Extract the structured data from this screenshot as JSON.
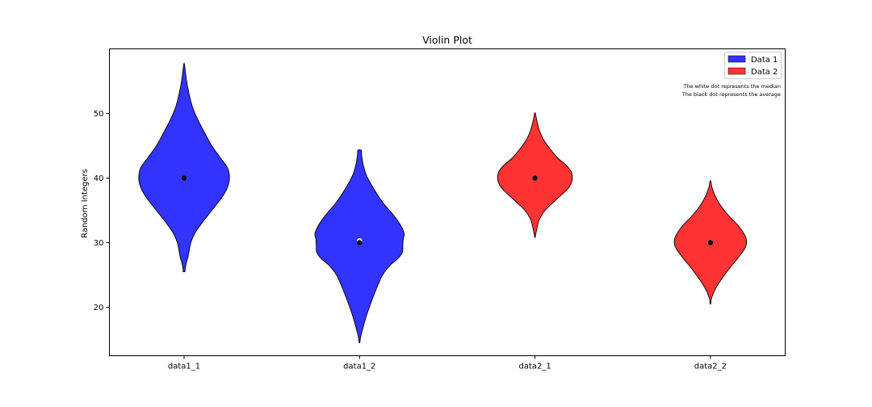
{
  "chart_data": {
    "type": "violin",
    "title": "Violin Plot",
    "xlabel": "",
    "ylabel": "Random Integers",
    "categories": [
      "data1_1",
      "data1_2",
      "data2_1",
      "data2_2"
    ],
    "ylim": [
      12.5,
      60
    ],
    "yticks": [
      20,
      30,
      40,
      50
    ],
    "grid": false,
    "legend_position": "top-right",
    "series": [
      {
        "name": "Data 1",
        "color": "#0000ff",
        "categories": [
          "data1_1",
          "data1_2"
        ]
      },
      {
        "name": "Data 2",
        "color": "#ff0000",
        "categories": [
          "data2_1",
          "data2_2"
        ]
      }
    ],
    "violins": [
      {
        "category": "data1_1",
        "series": "Data 1",
        "color": "#0000ff",
        "min": 25.5,
        "max": 57.5,
        "median": 40.0,
        "mean": 40.0,
        "profile": [
          [
            25.5,
            0.2
          ],
          [
            26.5,
            0.4
          ],
          [
            28,
            1.0
          ],
          [
            30,
            1.6
          ],
          [
            31.5,
            2.6
          ],
          [
            33,
            4.2
          ],
          [
            35,
            6.6
          ],
          [
            37,
            9.0
          ],
          [
            38.5,
            10.3
          ],
          [
            40,
            10.8
          ],
          [
            41.5,
            10.4
          ],
          [
            43,
            8.8
          ],
          [
            45,
            6.6
          ],
          [
            47,
            4.9
          ],
          [
            49,
            3.3
          ],
          [
            51,
            2.0
          ],
          [
            53,
            1.2
          ],
          [
            55,
            0.6
          ],
          [
            57.5,
            0.1
          ]
        ]
      },
      {
        "category": "data1_2",
        "series": "Data 1",
        "color": "#0000ff",
        "min": 14.5,
        "max": 44.3,
        "median": 30.3,
        "mean": 30.0,
        "profile": [
          [
            14.5,
            0.05
          ],
          [
            15.5,
            0.3
          ],
          [
            17,
            0.9
          ],
          [
            19,
            1.8
          ],
          [
            21,
            2.9
          ],
          [
            23,
            4.1
          ],
          [
            25,
            5.5
          ],
          [
            26.5,
            7.3
          ],
          [
            27.5,
            9.1
          ],
          [
            28.5,
            10.2
          ],
          [
            29.5,
            10.3
          ],
          [
            30.5,
            10.4
          ],
          [
            31.5,
            10.6
          ],
          [
            33,
            9.5
          ],
          [
            34.5,
            7.8
          ],
          [
            36,
            5.8
          ],
          [
            37.5,
            4.2
          ],
          [
            39,
            2.8
          ],
          [
            40.5,
            1.6
          ],
          [
            42,
            0.9
          ],
          [
            43.5,
            0.5
          ],
          [
            44.3,
            0.4
          ]
        ]
      },
      {
        "category": "data2_1",
        "series": "Data 2",
        "color": "#ff0000",
        "min": 30.8,
        "max": 50.0,
        "median": 40.0,
        "mean": 40.0,
        "profile": [
          [
            30.8,
            0.05
          ],
          [
            32,
            0.4
          ],
          [
            33.5,
            1.0
          ],
          [
            35,
            2.4
          ],
          [
            36.5,
            4.8
          ],
          [
            38,
            7.3
          ],
          [
            39,
            8.5
          ],
          [
            40,
            8.9
          ],
          [
            41,
            8.6
          ],
          [
            42,
            7.4
          ],
          [
            43,
            5.6
          ],
          [
            44.5,
            3.6
          ],
          [
            46,
            2.0
          ],
          [
            47.5,
            1.0
          ],
          [
            49,
            0.4
          ],
          [
            50,
            0.1
          ]
        ]
      },
      {
        "category": "data2_2",
        "series": "Data 2",
        "color": "#ff0000",
        "min": 20.5,
        "max": 39.5,
        "median": 30.0,
        "mean": 30.0,
        "profile": [
          [
            20.5,
            0.05
          ],
          [
            21.5,
            0.3
          ],
          [
            23,
            1.3
          ],
          [
            24.5,
            2.8
          ],
          [
            26,
            4.5
          ],
          [
            27.5,
            6.4
          ],
          [
            29,
            8.1
          ],
          [
            30,
            8.6
          ],
          [
            31,
            8.3
          ],
          [
            32.5,
            6.8
          ],
          [
            34,
            4.6
          ],
          [
            35.5,
            2.7
          ],
          [
            37,
            1.3
          ],
          [
            38.5,
            0.4
          ],
          [
            39.5,
            0.1
          ]
        ]
      }
    ],
    "annotations": [
      "The white dot represents the median",
      "The black dot represents the average"
    ]
  }
}
